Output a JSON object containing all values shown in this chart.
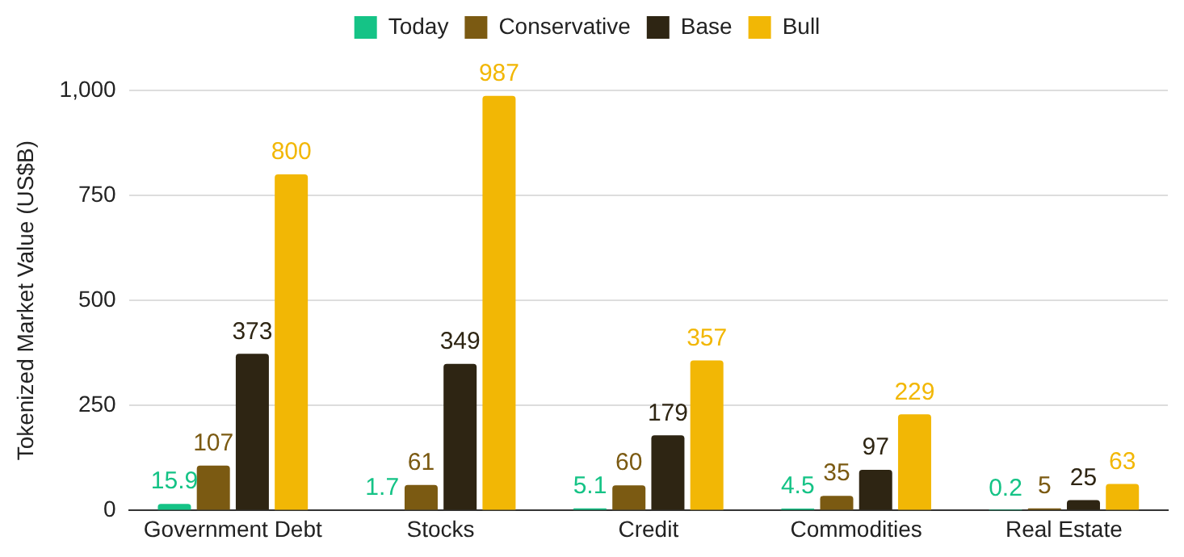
{
  "chart_data": {
    "type": "bar",
    "ylabel": "Tokenized Market Value (US$B)",
    "categories": [
      "Government Debt",
      "Stocks",
      "Credit",
      "Commodities",
      "Real Estate"
    ],
    "series": [
      {
        "name": "Today",
        "color": "#15c386",
        "values": [
          15.9,
          1.7,
          5.1,
          4.5,
          0.2
        ]
      },
      {
        "name": "Conservative",
        "color": "#7b5a12",
        "values": [
          107,
          61,
          60,
          35,
          5
        ]
      },
      {
        "name": "Base",
        "color": "#2e2513",
        "values": [
          373,
          349,
          179,
          97,
          25
        ]
      },
      {
        "name": "Bull",
        "color": "#f2b705",
        "values": [
          800,
          987,
          357,
          229,
          63
        ]
      }
    ],
    "ylim": [
      0,
      1000
    ],
    "yticks": [
      0,
      250,
      500,
      750,
      {
        "value": 1000,
        "label": "1,000"
      }
    ],
    "grid": "y",
    "legend": "top",
    "data_labels": true
  }
}
